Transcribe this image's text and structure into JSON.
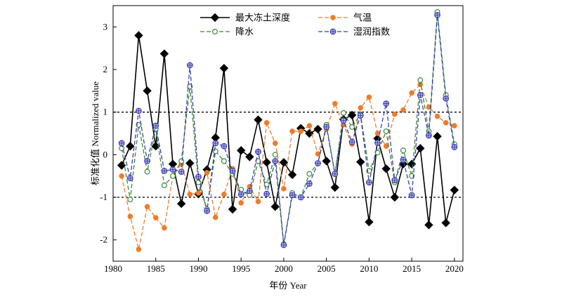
{
  "chart_data": {
    "type": "line",
    "title": "",
    "xlabel": "年份 Year",
    "ylabel": "标准化值 Normalized value",
    "xlim": [
      1980,
      2021
    ],
    "ylim": [
      -2.5,
      3.5
    ],
    "x_ticks": [
      1980,
      1985,
      1990,
      1995,
      2000,
      2005,
      2010,
      2015,
      2020
    ],
    "y_ticks": [
      -2,
      -1,
      0,
      1,
      2,
      3
    ],
    "reference_lines": [
      1,
      -1
    ],
    "grid": false,
    "legend_position": "top",
    "x": [
      1981,
      1982,
      1983,
      1984,
      1985,
      1986,
      1987,
      1988,
      1989,
      1990,
      1991,
      1992,
      1993,
      1994,
      1995,
      1996,
      1997,
      1998,
      1999,
      2000,
      2001,
      2002,
      2003,
      2004,
      2005,
      2006,
      2007,
      2008,
      2009,
      2010,
      2011,
      2012,
      2013,
      2014,
      2015,
      2016,
      2017,
      2018,
      2019,
      2020
    ],
    "series": [
      {
        "name": "最大冻土深度",
        "color": "#000000",
        "style": "solid",
        "marker": "diamond",
        "values": [
          -0.25,
          0.2,
          2.8,
          1.5,
          0.2,
          2.37,
          -0.22,
          -1.15,
          -0.2,
          -0.92,
          -0.35,
          0.4,
          2.03,
          -1.28,
          0.1,
          -0.05,
          0.82,
          -0.18,
          -1.22,
          -0.18,
          -0.47,
          0.62,
          0.5,
          0.6,
          -0.15,
          -0.77,
          0.83,
          0.93,
          -0.17,
          -1.58,
          0.38,
          -0.33,
          -1.0,
          -0.22,
          -0.22,
          0.15,
          -1.65,
          0.43,
          -1.6,
          -0.83
        ]
      },
      {
        "name": "气温",
        "color": "#ef7c2b",
        "style": "dashed",
        "marker": "dot",
        "values": [
          -0.5,
          -1.45,
          -2.22,
          -1.22,
          -1.48,
          -1.72,
          -0.5,
          -0.22,
          -0.93,
          -0.9,
          -0.42,
          -1.47,
          -0.93,
          -0.33,
          -1.13,
          -0.75,
          -1.1,
          0.75,
          0.27,
          -0.8,
          0.55,
          0.55,
          0.68,
          0.02,
          0.6,
          1.2,
          0.7,
          0.25,
          1.1,
          1.35,
          0.5,
          0.2,
          0.95,
          1.05,
          1.45,
          1.65,
          1.12,
          0.9,
          0.75,
          0.68
        ]
      },
      {
        "name": "降水",
        "color": "#3a8a3a",
        "style": "dashed",
        "marker": "open-circle",
        "values": [
          0.15,
          -1.05,
          0.7,
          -0.4,
          0.6,
          -0.72,
          -0.5,
          -0.15,
          1.6,
          -0.65,
          -1.28,
          0.08,
          -0.15,
          -0.45,
          -0.82,
          -0.95,
          -0.15,
          -0.7,
          0.0,
          -2.1,
          -0.9,
          -1.0,
          -0.45,
          -0.2,
          0.7,
          -0.45,
          0.98,
          0.65,
          0.95,
          -0.38,
          0.05,
          0.55,
          -0.65,
          0.1,
          -0.5,
          1.75,
          0.55,
          3.35,
          1.4,
          0.25
        ]
      },
      {
        "name": "湿润指数",
        "color": "#3b3fb0",
        "style": "dashed",
        "marker": "crossed-circle",
        "values": [
          0.27,
          -0.55,
          1.03,
          -0.15,
          0.68,
          -0.38,
          -0.35,
          -0.4,
          2.1,
          -0.52,
          -1.32,
          0.27,
          0.2,
          -0.38,
          -0.93,
          -0.85,
          0.07,
          -0.92,
          -0.15,
          -2.12,
          -0.95,
          -1.0,
          -0.68,
          -0.2,
          0.65,
          -0.45,
          0.8,
          0.3,
          0.92,
          -0.65,
          0.28,
          1.2,
          -0.6,
          -0.12,
          -0.95,
          1.4,
          0.45,
          3.28,
          1.32,
          0.18
        ]
      }
    ]
  }
}
